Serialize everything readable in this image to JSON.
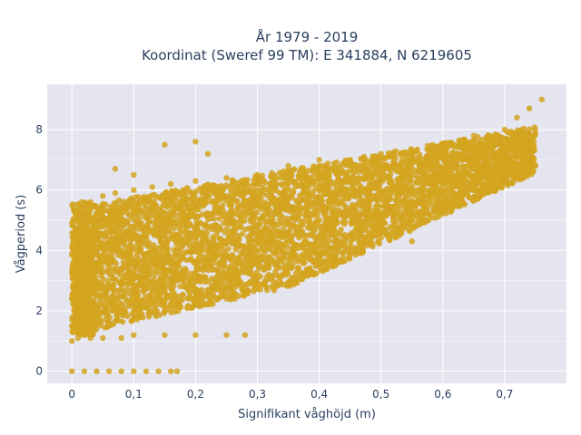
{
  "chart_data": {
    "type": "scatter",
    "title": "År 1979 - 2019",
    "subtitle": "Koordinat (Sweref 99 TM): E 341884, N 6219605",
    "xlabel": "Signifikant våghöjd (m)",
    "ylabel": "Vågperiod (s)",
    "xlim": [
      -0.04,
      0.8
    ],
    "ylim": [
      -0.4,
      9.5
    ],
    "xticks": [
      0,
      0.1,
      0.2,
      0.3,
      0.4,
      0.5,
      0.6,
      0.7
    ],
    "xtick_labels": [
      "0",
      "0,1",
      "0,2",
      "0,3",
      "0,4",
      "0,5",
      "0,6",
      "0,7"
    ],
    "yticks": [
      0,
      2,
      4,
      6,
      8
    ],
    "ytick_labels": [
      "0",
      "2",
      "4",
      "6",
      "8"
    ],
    "grid": true,
    "legend": "none",
    "marker_color": "#d4a520",
    "plot_bgcolor": "#e5e5ef",
    "series": [
      {
        "x": [
          0.0,
          0.02,
          0.04,
          0.06,
          0.08,
          0.1,
          0.12,
          0.14,
          0.16,
          0.17,
          0.0,
          0.01,
          0.02,
          0.03,
          0.05,
          0.08,
          0.1,
          0.15,
          0.2,
          0.25,
          0.28,
          0.0,
          0.0,
          0.0,
          0.01,
          0.02,
          0.04,
          0.06,
          0.08,
          0.1,
          0.12,
          0.15,
          0.03,
          0.05,
          0.07,
          0.1,
          0.13,
          0.16,
          0.2,
          0.25,
          0.3,
          0.35,
          0.4,
          0.08,
          0.12,
          0.15,
          0.18,
          0.22,
          0.27,
          0.3,
          0.35,
          0.4,
          0.45,
          0.5,
          0.2,
          0.25,
          0.3,
          0.35,
          0.4,
          0.45,
          0.5,
          0.55,
          0.6,
          0.65,
          0.5,
          0.55,
          0.6,
          0.65,
          0.7,
          0.72,
          0.74,
          0.76,
          0.1,
          0.2,
          0.15,
          0.22,
          0.07,
          0.3,
          0.45,
          0.55
        ],
        "y": [
          0.0,
          0.0,
          0.0,
          0.0,
          0.0,
          0.0,
          0.0,
          0.0,
          0.0,
          0.0,
          1.0,
          1.1,
          1.2,
          1.1,
          1.1,
          1.1,
          1.2,
          1.2,
          1.2,
          1.2,
          1.2,
          1.5,
          2.4,
          4.9,
          4.1,
          3.0,
          2.5,
          2.2,
          2.0,
          2.0,
          2.1,
          2.3,
          5.6,
          5.8,
          5.9,
          6.0,
          6.1,
          6.2,
          6.3,
          6.4,
          6.5,
          6.6,
          6.8,
          4.5,
          4.5,
          4.5,
          3.0,
          3.5,
          3.3,
          3.1,
          3.5,
          3.8,
          4.5,
          5.0,
          5.5,
          5.8,
          6.3,
          6.8,
          7.0,
          7.0,
          7.2,
          7.3,
          7.5,
          7.8,
          5.8,
          6.0,
          6.5,
          7.0,
          8.0,
          8.4,
          8.7,
          9.0,
          6.5,
          7.6,
          7.5,
          7.2,
          6.7,
          4.5,
          4.1,
          4.3
        ]
      }
    ]
  }
}
